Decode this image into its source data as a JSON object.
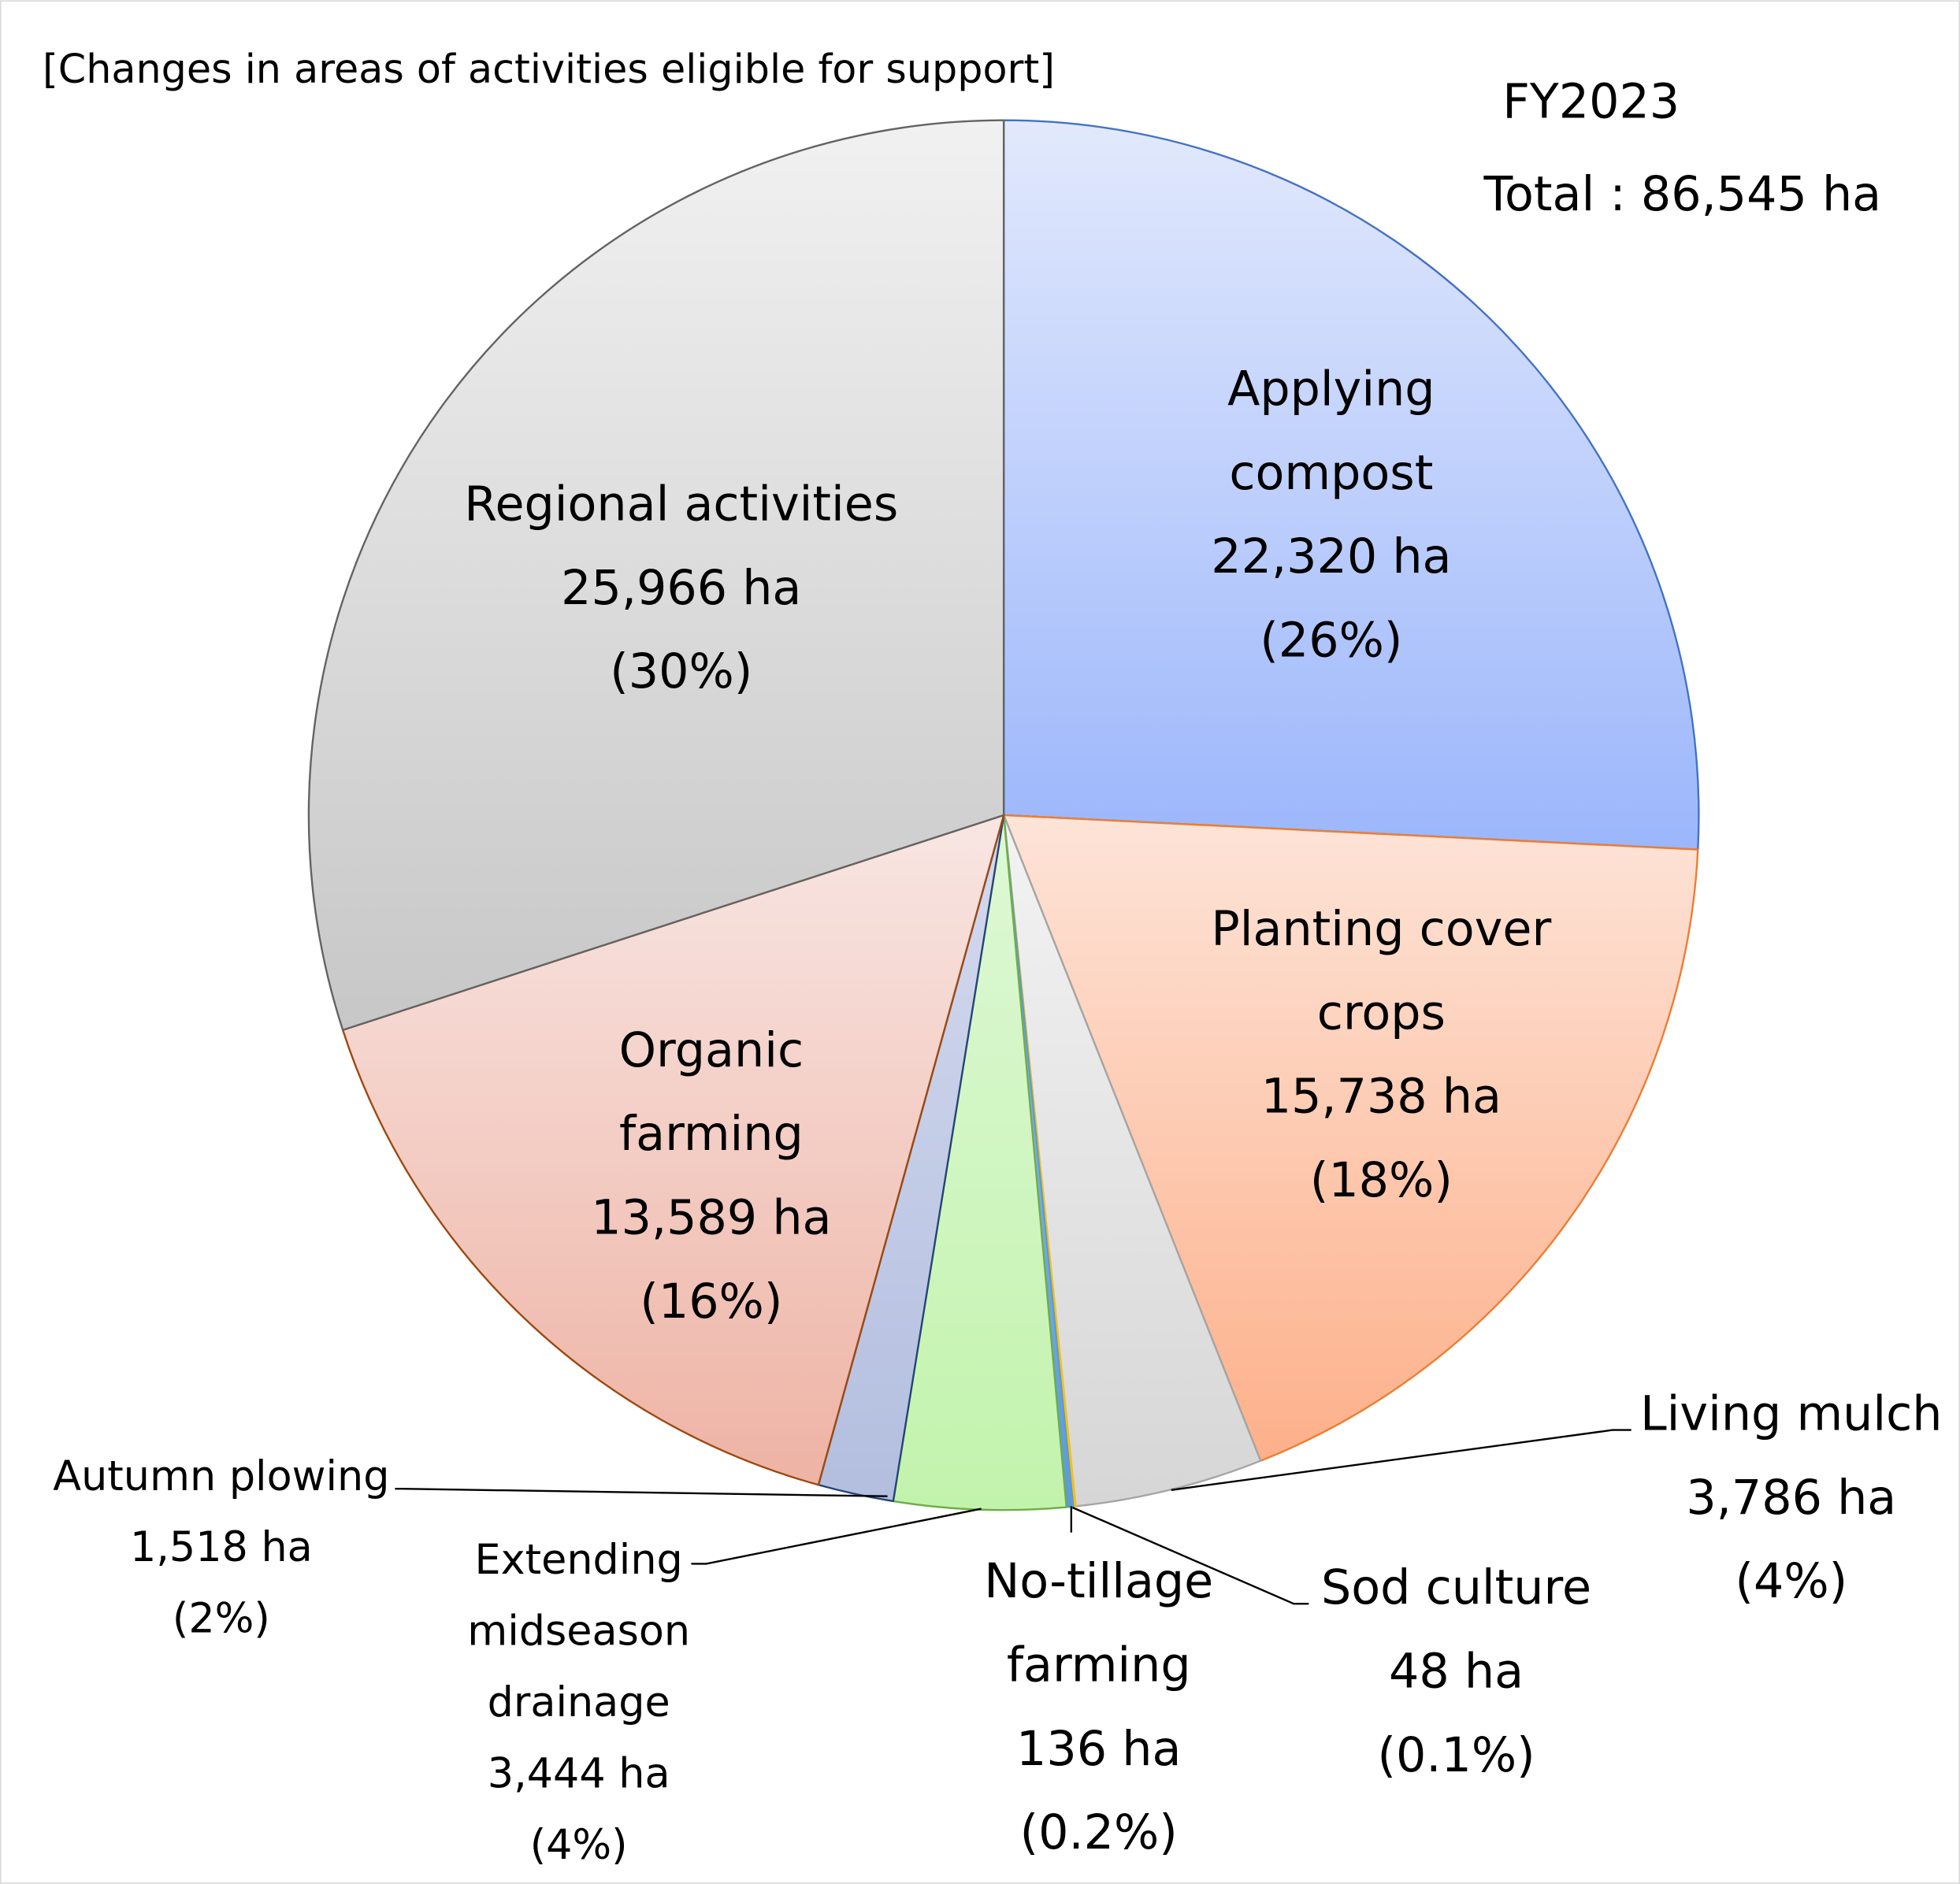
{
  "chart_data": {
    "type": "pie",
    "title": "[Changes in areas of activities eligible for support]",
    "year": "FY2023",
    "total_label": "Total : 86,545 ha",
    "total": 86545,
    "unit": "ha",
    "start_angle": "12 o'clock, clockwise",
    "slices": [
      {
        "name": "Applying compost",
        "value": 22320,
        "value_label": "22,320 ha",
        "pct_label": "(26%)",
        "lines": [
          "Applying",
          "compost"
        ],
        "color_top": "#e2e9fc",
        "color_bottom": "#9bb6fb",
        "stroke": "#4472c4"
      },
      {
        "name": "Planting cover crops",
        "value": 15738,
        "value_label": "15,738 ha",
        "pct_label": "(18%)",
        "lines": [
          "Planting cover",
          "crops"
        ],
        "color_top": "#fde4d8",
        "color_bottom": "#fdb08a",
        "stroke": "#ed7d31"
      },
      {
        "name": "Living mulch",
        "value": 3786,
        "value_label": "3,786 ha",
        "pct_label": "(4%)",
        "lines": [
          "Living mulch"
        ],
        "color_top": "#f3f3f3",
        "color_bottom": "#d6d6d6",
        "stroke": "#a5a5a5"
      },
      {
        "name": "Sod culture",
        "value": 48,
        "value_label": "48 ha",
        "pct_label": "(0.1%)",
        "lines": [
          "Sod culture"
        ],
        "color_top": "#ffd966",
        "color_bottom": "#ffc000",
        "stroke": "#ffc000"
      },
      {
        "name": "No-tillage farming",
        "value": 136,
        "value_label": "136 ha",
        "pct_label": "(0.2%)",
        "lines": [
          "No-tillage",
          "farming"
        ],
        "color_top": "#9dc3e6",
        "color_bottom": "#5b9bd5",
        "stroke": "#5b9bd5"
      },
      {
        "name": "Extending midseason drainage",
        "value": 3444,
        "value_label": "3,444 ha",
        "pct_label": "(4%)",
        "lines": [
          "Extending",
          "midseason",
          "drainage"
        ],
        "color_top": "#def8d6",
        "color_bottom": "#c2f3ac",
        "stroke": "#70ad47"
      },
      {
        "name": "Autumn plowing",
        "value": 1518,
        "value_label": "1,518 ha",
        "pct_label": "(2%)",
        "lines": [
          "Autumn plowing"
        ],
        "color_top": "#d4daee",
        "color_bottom": "#b3bedf",
        "stroke": "#264478"
      },
      {
        "name": "Organic farming",
        "value": 13589,
        "value_label": "13,589 ha",
        "pct_label": "(16%)",
        "lines": [
          "Organic",
          "farming"
        ],
        "color_top": "#f8e6e3",
        "color_bottom": "#eeb3a4",
        "stroke": "#9e480e"
      },
      {
        "name": "Regional activities",
        "value": 25966,
        "value_label": "25,966 ha",
        "pct_label": "(30%)",
        "lines": [
          "Regional activities"
        ],
        "color_top": "#f1f1f1",
        "color_bottom": "#c7c7c7",
        "stroke": "#636363"
      }
    ]
  }
}
